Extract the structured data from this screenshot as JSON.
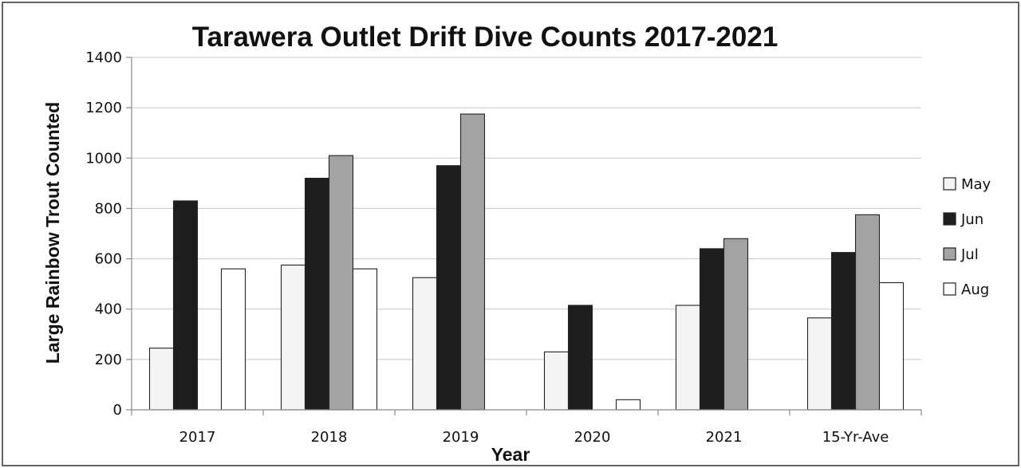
{
  "chart_data": {
    "type": "bar",
    "title": "Tarawera Outlet Drift Dive Counts 2017-2021",
    "xlabel": "Year",
    "ylabel": "Large Rainbow Trout Counted",
    "ylim": [
      0,
      1400
    ],
    "yticks": [
      0,
      200,
      400,
      600,
      800,
      1000,
      1200,
      1400
    ],
    "grid": true,
    "legend_position": "right",
    "categories": [
      "2017",
      "2018",
      "2019",
      "2020",
      "2021",
      "15-Yr-Ave"
    ],
    "series": [
      {
        "name": "May",
        "color": "#f4f4f4",
        "values": [
          245,
          575,
          525,
          230,
          415,
          365
        ]
      },
      {
        "name": "Jun",
        "color": "#1e1e1e",
        "values": [
          830,
          920,
          970,
          415,
          640,
          625
        ]
      },
      {
        "name": "Jul",
        "color": "#a3a3a3",
        "values": [
          null,
          1010,
          1175,
          null,
          680,
          775
        ]
      },
      {
        "name": "Aug",
        "color": "#ffffff",
        "values": [
          560,
          560,
          null,
          40,
          null,
          505
        ]
      }
    ]
  }
}
